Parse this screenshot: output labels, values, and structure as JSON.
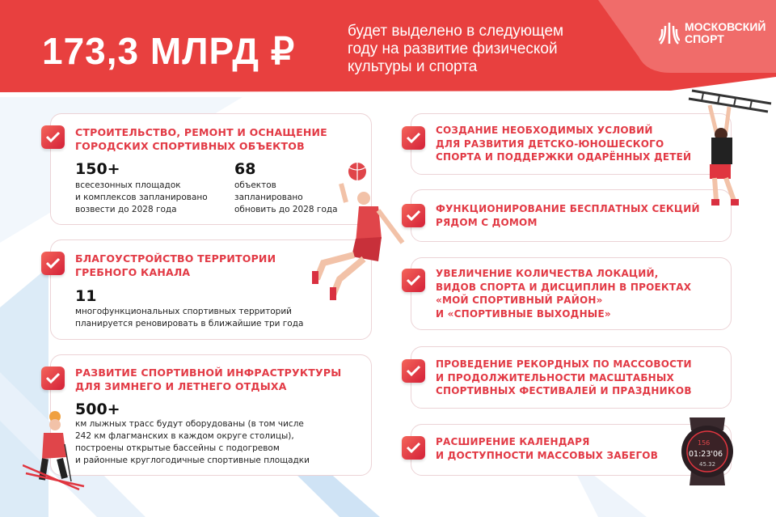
{
  "header": {
    "amount": "173,3 МЛРД ₽",
    "subtitle_lines": [
      "будет выделено в следующем",
      "году на развитие физической",
      "культуры и спорта"
    ],
    "logo": "МОСКОВСКИЙ СПОРТ",
    "logo_lines": [
      "МОСКОВСКИЙ",
      "СПОРТ"
    ]
  },
  "colors": {
    "accent": "#e8403f",
    "title": "#e23a45",
    "logo_panel": "#f06c6a",
    "border": "#ecd3d6"
  },
  "left_cards": [
    {
      "title_lines": [
        "СТРОИТЕЛЬСТВО, РЕМОНТ И ОСНАЩЕНИЕ",
        "ГОРОДСКИХ СПОРТИВНЫХ ОБЪЕКТОВ"
      ],
      "stats": [
        {
          "value": "150+",
          "lines": [
            "всесезонных площадок",
            "и комплексов запланировано",
            "возвести до 2028 года"
          ]
        },
        {
          "value": "68",
          "lines": [
            "объектов",
            "запланировано",
            "обновить до 2028 года"
          ]
        }
      ]
    },
    {
      "title_lines": [
        "БЛАГОУСТРОЙСТВО ТЕРРИТОРИИ",
        "ГРЕБНОГО КАНАЛА"
      ],
      "stats": [
        {
          "value": "11",
          "lines": [
            "многофункциональных спортивных территорий",
            "планируется реновировать в ближайшие три года"
          ]
        }
      ]
    },
    {
      "title_lines": [
        "РАЗВИТИЕ СПОРТИВНОЙ ИНФРАСТРУКТУРЫ",
        "ДЛЯ ЗИМНЕГО И ЛЕТНЕГО ОТДЫХА"
      ],
      "stats": [
        {
          "value": "500+",
          "lines": [
            "км лыжных трасс будут оборудованы (в том числе",
            "242 км флагманских в каждом округе столицы),",
            "построены открытые бассейны с подогревом",
            "и районные круглогодичные спортивные площадки"
          ]
        }
      ]
    }
  ],
  "right_cards": [
    {
      "title_lines": [
        "СОЗДАНИЕ НЕОБХОДИМЫХ УСЛОВИЙ",
        "ДЛЯ РАЗВИТИЯ ДЕТСКО-ЮНОШЕСКОГО",
        "СПОРТА И ПОДДЕРЖКИ ОДАРЁННЫХ ДЕТЕЙ"
      ]
    },
    {
      "title_lines": [
        "ФУНКЦИОНИРОВАНИЕ БЕСПЛАТНЫХ СЕКЦИЙ",
        "РЯДОМ С ДОМОМ"
      ]
    },
    {
      "title_lines": [
        "УВЕЛИЧЕНИЕ КОЛИЧЕСТВА ЛОКАЦИЙ,",
        "ВИДОВ СПОРТА И ДИСЦИПЛИН В ПРОЕКТАХ",
        "«МОЙ СПОРТИВНЫЙ РАЙОН»",
        "И «СПОРТИВНЫЕ ВЫХОДНЫЕ»"
      ]
    },
    {
      "title_lines": [
        "ПРОВЕДЕНИЕ РЕКОРДНЫХ ПО МАССОВОСТИ",
        "И ПРОДОЛЖИТЕЛЬНОСТИ МАСШТАБНЫХ",
        "СПОРТИВНЫХ ФЕСТИВАЛЕЙ И ПРАЗДНИКОВ"
      ]
    },
    {
      "title_lines": [
        "РАСШИРЕНИЕ КАЛЕНДАРЯ",
        "И ДОСТУПНОСТИ МАССОВЫХ ЗАБЕГОВ"
      ]
    }
  ],
  "watch": {
    "heart_rate": "156",
    "time": "01:23'06",
    "distance": "45.32"
  }
}
